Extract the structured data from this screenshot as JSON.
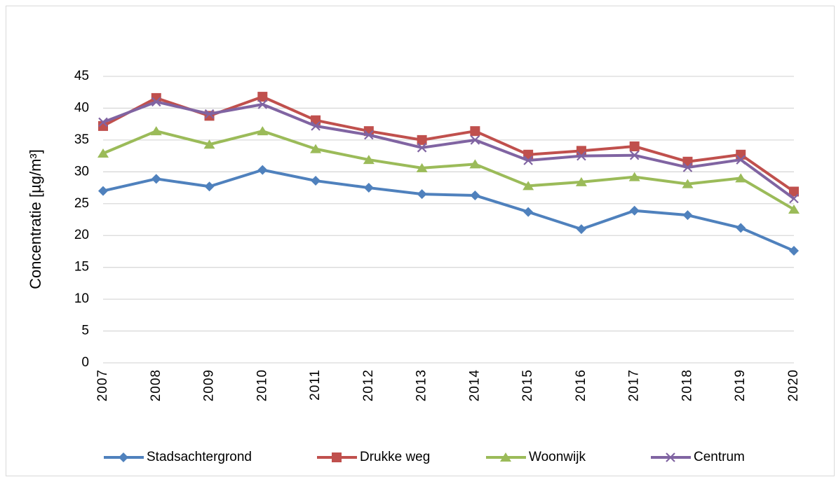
{
  "chart_data": {
    "type": "line",
    "ylabel": "Concentratie [µg/m³]",
    "categories": [
      "2007",
      "2008",
      "2009",
      "2010",
      "2011",
      "2012",
      "2013",
      "2014",
      "2015",
      "2016",
      "2017",
      "2018",
      "2019",
      "2020"
    ],
    "series": [
      {
        "name": "Stadsachtergrond",
        "color": "#4f81bd",
        "marker": "diamond",
        "values": [
          27.0,
          28.9,
          27.7,
          30.3,
          28.6,
          27.5,
          26.5,
          26.3,
          23.7,
          21.0,
          23.9,
          23.2,
          21.2,
          17.6
        ]
      },
      {
        "name": "Drukke weg",
        "color": "#c0504d",
        "marker": "square",
        "values": [
          37.2,
          41.6,
          38.8,
          41.8,
          38.1,
          36.4,
          35.0,
          36.4,
          32.7,
          33.3,
          34.0,
          31.6,
          32.7,
          26.9
        ]
      },
      {
        "name": "Woonwijk",
        "color": "#9bbb59",
        "marker": "triangle",
        "values": [
          32.9,
          36.4,
          34.3,
          36.4,
          33.6,
          31.9,
          30.6,
          31.2,
          27.8,
          28.4,
          29.2,
          28.1,
          29.0,
          24.1
        ]
      },
      {
        "name": "Centrum",
        "color": "#8064a2",
        "marker": "x",
        "values": [
          37.8,
          41.0,
          39.1,
          40.6,
          37.2,
          35.8,
          33.8,
          35.0,
          31.8,
          32.5,
          32.6,
          30.7,
          31.9,
          25.8
        ]
      }
    ],
    "ylim": [
      0,
      45
    ],
    "yticks": [
      0,
      5,
      10,
      15,
      20,
      25,
      30,
      35,
      40,
      45
    ],
    "grid": true,
    "legend": "bottom"
  }
}
